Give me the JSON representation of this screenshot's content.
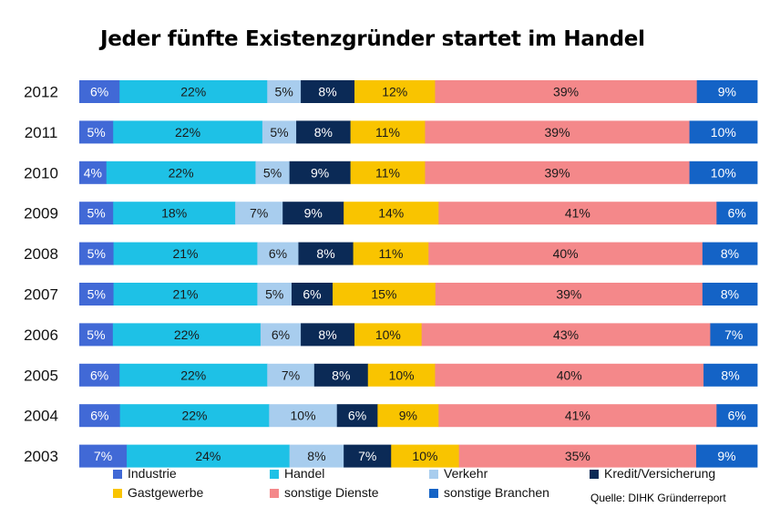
{
  "chart_data": {
    "type": "bar",
    "orientation": "horizontal",
    "stacked": true,
    "title": "Jeder fünfte Existenzgründer startet im Handel",
    "source": "Quelle: DIHK Gründerreport",
    "xlabel": "",
    "ylabel": "",
    "xlim": [
      0,
      100
    ],
    "value_suffix": "%",
    "categories": [
      "2012",
      "2011",
      "2010",
      "2009",
      "2008",
      "2007",
      "2006",
      "2005",
      "2004",
      "2003"
    ],
    "series": [
      {
        "name": "Industrie",
        "color": "#4169d6",
        "label_color": "#ffffff",
        "values": [
          6,
          5,
          4,
          5,
          5,
          5,
          5,
          6,
          6,
          7
        ]
      },
      {
        "name": "Handel",
        "color": "#1ec1e6",
        "label_color": "#1a1a1a",
        "values": [
          22,
          22,
          22,
          18,
          21,
          21,
          22,
          22,
          22,
          24
        ]
      },
      {
        "name": "Verkehr",
        "color": "#a8cdee",
        "label_color": "#1a1a1a",
        "values": [
          5,
          5,
          5,
          7,
          6,
          5,
          6,
          7,
          10,
          8
        ]
      },
      {
        "name": "Kredit/Versicherung",
        "color": "#0b2a56",
        "label_color": "#ffffff",
        "values": [
          8,
          8,
          9,
          9,
          8,
          6,
          8,
          8,
          6,
          7
        ]
      },
      {
        "name": "Gastgewerbe",
        "color": "#f9c400",
        "label_color": "#1a1a1a",
        "values": [
          12,
          11,
          11,
          14,
          11,
          15,
          10,
          10,
          9,
          10
        ]
      },
      {
        "name": "sonstige Dienste",
        "color": "#f4888a",
        "label_color": "#1a1a1a",
        "values": [
          39,
          39,
          39,
          41,
          40,
          39,
          43,
          40,
          41,
          35
        ]
      },
      {
        "name": "sonstige Branchen",
        "color": "#1463c6",
        "label_color": "#ffffff",
        "values": [
          9,
          10,
          10,
          6,
          8,
          8,
          7,
          8,
          6,
          9
        ]
      }
    ]
  }
}
